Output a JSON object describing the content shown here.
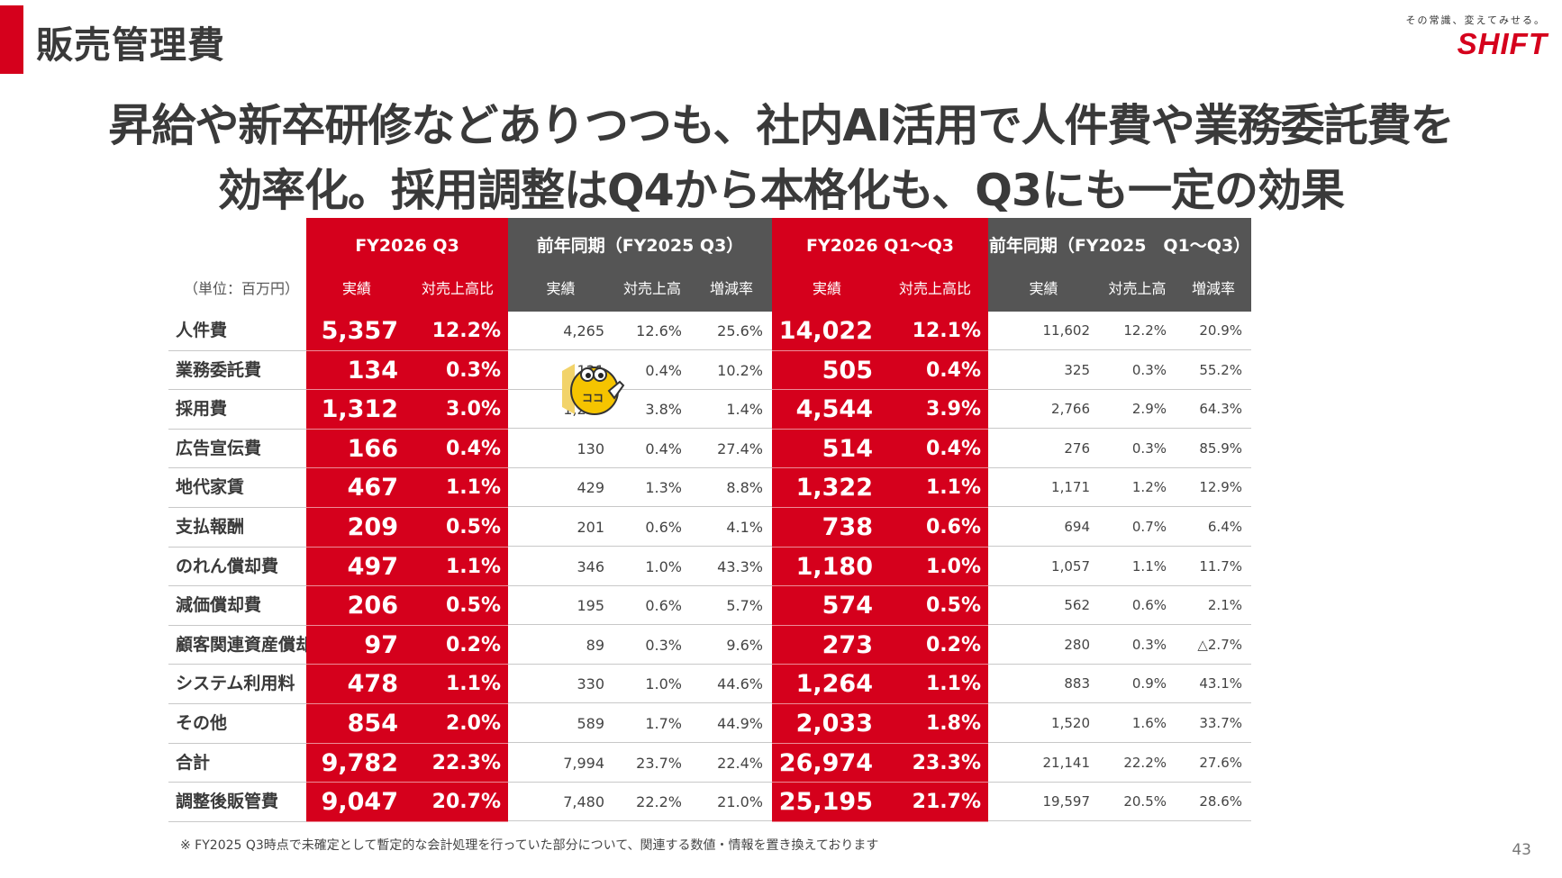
{
  "page": {
    "section_title": "販売管理費",
    "headline_line1": "昇給や新卒研修などありつつも、社内AI活用で人件費や業務委託費を",
    "headline_line2": "効率化。採用調整はQ4から本格化も、Q3にも一定の効果",
    "footnote": "※ FY2025 Q3時点で未確定として暫定的な会計処理を行っていた部分について、関連する数値・情報を置き換えております",
    "page_number": "43"
  },
  "logo": {
    "tagline": "その常識、変えてみせる。",
    "word": "SHIFT",
    "color": "#d5001c"
  },
  "mascot": {
    "icon": "mascot-character-icon",
    "label": "ココ"
  },
  "colors": {
    "accent": "#d5001c",
    "dark_header": "#555555"
  },
  "table": {
    "unit": "（単位：百万円）",
    "groups": [
      {
        "label": "FY2026 Q3"
      },
      {
        "label": "前年同期（FY2025 Q3）"
      },
      {
        "label": "FY2026 Q1〜Q3"
      },
      {
        "label": "前年同期（FY2025　Q1〜Q3）"
      }
    ],
    "subheaders": [
      "実績",
      "対売上高比",
      "実績",
      "対売上高",
      "増減率",
      "実績",
      "対売上高比",
      "実績",
      "対売上高",
      "増減率"
    ],
    "rows": [
      {
        "label": "人件費",
        "v": [
          "5,357",
          "12.2%",
          "4,265",
          "12.6%",
          "25.6%",
          "14,022",
          "12.1%",
          "11,602",
          "12.2%",
          "20.9%"
        ]
      },
      {
        "label": "業務委託費",
        "v": [
          "134",
          "0.3%",
          "121",
          "0.4%",
          "10.2%",
          "505",
          "0.4%",
          "325",
          "0.3%",
          "55.2%"
        ]
      },
      {
        "label": "採用費",
        "v": [
          "1,312",
          "3.0%",
          "1,293",
          "3.8%",
          "1.4%",
          "4,544",
          "3.9%",
          "2,766",
          "2.9%",
          "64.3%"
        ]
      },
      {
        "label": "広告宣伝費",
        "v": [
          "166",
          "0.4%",
          "130",
          "0.4%",
          "27.4%",
          "514",
          "0.4%",
          "276",
          "0.3%",
          "85.9%"
        ]
      },
      {
        "label": "地代家賃",
        "v": [
          "467",
          "1.1%",
          "429",
          "1.3%",
          "8.8%",
          "1,322",
          "1.1%",
          "1,171",
          "1.2%",
          "12.9%"
        ]
      },
      {
        "label": "支払報酬",
        "v": [
          "209",
          "0.5%",
          "201",
          "0.6%",
          "4.1%",
          "738",
          "0.6%",
          "694",
          "0.7%",
          "6.4%"
        ]
      },
      {
        "label": "のれん償却費",
        "v": [
          "497",
          "1.1%",
          "346",
          "1.0%",
          "43.3%",
          "1,180",
          "1.0%",
          "1,057",
          "1.1%",
          "11.7%"
        ]
      },
      {
        "label": "減価償却費",
        "v": [
          "206",
          "0.5%",
          "195",
          "0.6%",
          "5.7%",
          "574",
          "0.5%",
          "562",
          "0.6%",
          "2.1%"
        ]
      },
      {
        "label": "顧客関連資産償却",
        "v": [
          "97",
          "0.2%",
          "89",
          "0.3%",
          "9.6%",
          "273",
          "0.2%",
          "280",
          "0.3%",
          "△2.7%"
        ]
      },
      {
        "label": "システム利用料",
        "v": [
          "478",
          "1.1%",
          "330",
          "1.0%",
          "44.6%",
          "1,264",
          "1.1%",
          "883",
          "0.9%",
          "43.1%"
        ]
      },
      {
        "label": "その他",
        "v": [
          "854",
          "2.0%",
          "589",
          "1.7%",
          "44.9%",
          "2,033",
          "1.8%",
          "1,520",
          "1.6%",
          "33.7%"
        ]
      },
      {
        "label": "合計",
        "v": [
          "9,782",
          "22.3%",
          "7,994",
          "23.7%",
          "22.4%",
          "26,974",
          "23.3%",
          "21,141",
          "22.2%",
          "27.6%"
        ]
      },
      {
        "label": "調整後販管費",
        "v": [
          "9,047",
          "20.7%",
          "7,480",
          "22.2%",
          "21.0%",
          "25,195",
          "21.7%",
          "19,597",
          "20.5%",
          "28.6%"
        ]
      }
    ]
  }
}
